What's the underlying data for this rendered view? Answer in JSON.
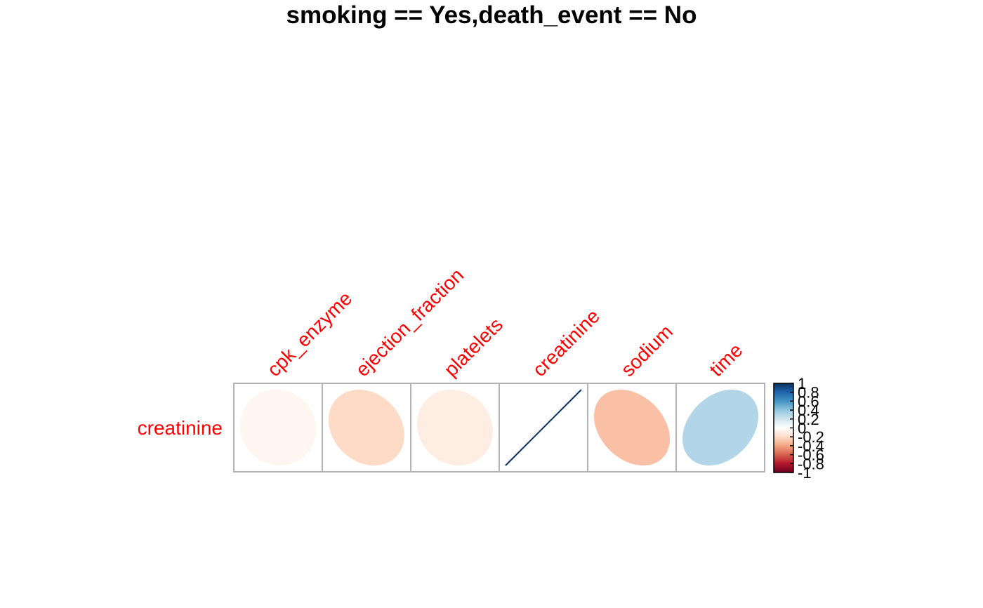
{
  "chart_data": {
    "type": "heatmap",
    "title": "smoking == Yes,death_event == No",
    "method": "ellipse",
    "rows": [
      "creatinine"
    ],
    "columns": [
      "cpk_enzyme",
      "ejection_fraction",
      "platelets",
      "creatinine",
      "sodium",
      "time"
    ],
    "values": [
      [
        -0.05,
        -0.2,
        -0.1,
        1.0,
        -0.3,
        0.3
      ]
    ],
    "value_range": [
      -1,
      1
    ],
    "colorbar": {
      "ticks": [
        "1",
        "0.8",
        "0.6",
        "0.4",
        "0.2",
        "0",
        "-0.2",
        "-0.4",
        "-0.6",
        "-0.8",
        "-1"
      ],
      "tick_values": [
        1,
        0.8,
        0.6,
        0.4,
        0.2,
        0,
        -0.2,
        -0.4,
        -0.6,
        -0.8,
        -1
      ],
      "position": "right"
    },
    "colors": {
      "label": "#ff0000",
      "grid": "#b3b3b3",
      "palette": [
        "#67001f",
        "#b2182b",
        "#d6604d",
        "#f4a582",
        "#fddbc7",
        "#ffffff",
        "#d1e5f0",
        "#92c5de",
        "#4393c3",
        "#2166ac",
        "#053061"
      ]
    }
  }
}
